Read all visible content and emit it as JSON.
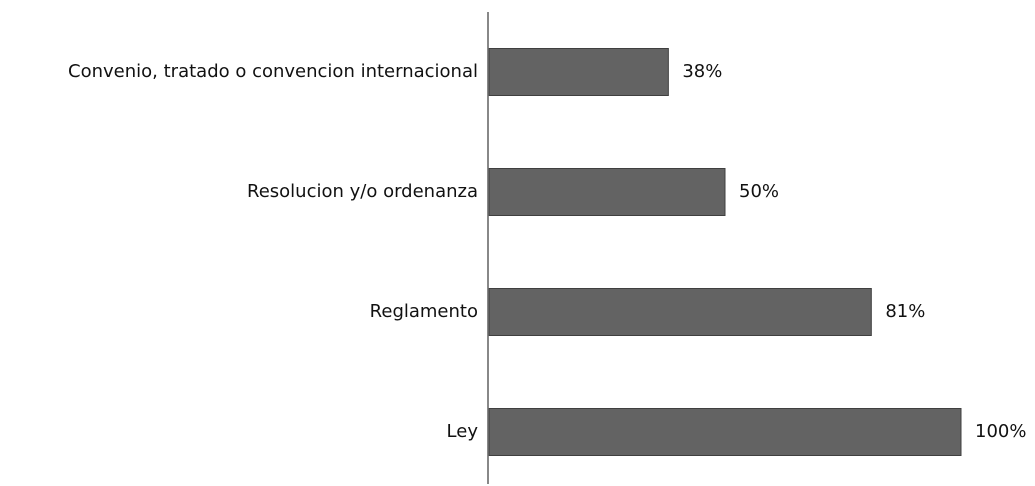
{
  "chart_data": {
    "type": "bar",
    "orientation": "horizontal",
    "categories": [
      "Convenio, tratado o convencion internacional",
      "Resolucion y/o ordenanza",
      "Reglamento",
      "Ley"
    ],
    "values": [
      38,
      50,
      81,
      100
    ],
    "value_labels": [
      "38%",
      "50%",
      "81%",
      "100%"
    ],
    "color": "#636363"
  }
}
